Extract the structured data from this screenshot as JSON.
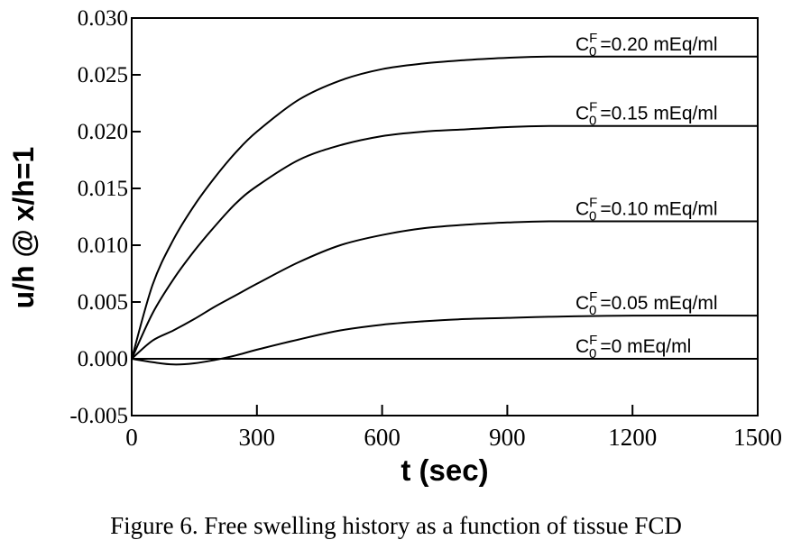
{
  "caption": "Figure 6.  Free swelling history as a function of tissue FCD",
  "chart_data": {
    "type": "line",
    "xlabel": "t (sec)",
    "ylabel": "u/h @ x/h=1",
    "xlim": [
      0,
      1500
    ],
    "ylim": [
      -0.005,
      0.03
    ],
    "xticks": [
      0,
      300,
      600,
      900,
      1200,
      1500
    ],
    "xtick_labels": [
      "0",
      "300",
      "600",
      "900",
      "1200",
      "1500"
    ],
    "yticks": [
      -0.005,
      0.0,
      0.005,
      0.01,
      0.015,
      0.02,
      0.025,
      0.03
    ],
    "ytick_labels": [
      "-0.005",
      "0.000",
      "0.005",
      "0.010",
      "0.015",
      "0.020",
      "0.025",
      "0.030"
    ],
    "grid": false,
    "line_color": "#000000",
    "x": [
      0,
      50,
      100,
      150,
      200,
      250,
      300,
      400,
      500,
      600,
      700,
      800,
      900,
      1000,
      1200,
      1500
    ],
    "series": [
      {
        "name": "C0F =0.20 mEq/ml",
        "label_prefix": "C",
        "label_sub": "0",
        "label_sup": "F",
        "label_value": "=0.20 mEq/ml",
        "values": [
          0.0,
          0.0065,
          0.0105,
          0.0135,
          0.016,
          0.0182,
          0.02,
          0.0228,
          0.0245,
          0.0255,
          0.026,
          0.0263,
          0.0265,
          0.0266,
          0.0266,
          0.0266
        ]
      },
      {
        "name": "C0F =0.15 mEq/ml",
        "label_prefix": "C",
        "label_sub": "0",
        "label_sup": "F",
        "label_value": "=0.15 mEq/ml",
        "values": [
          0.0,
          0.004,
          0.007,
          0.0095,
          0.0117,
          0.0137,
          0.0152,
          0.0175,
          0.0188,
          0.0196,
          0.02,
          0.0202,
          0.0204,
          0.0205,
          0.0205,
          0.0205
        ]
      },
      {
        "name": "C0F =0.10 mEq/ml",
        "label_prefix": "C",
        "label_sub": "0",
        "label_sup": "F",
        "label_value": "=0.10 mEq/ml",
        "values": [
          0.0,
          0.0016,
          0.0025,
          0.0035,
          0.0046,
          0.0056,
          0.0066,
          0.0085,
          0.01,
          0.0109,
          0.0115,
          0.0118,
          0.012,
          0.0121,
          0.0121,
          0.0121
        ]
      },
      {
        "name": "C0F =0.05 mEq/ml",
        "label_prefix": "C",
        "label_sub": "0",
        "label_sup": "F",
        "label_value": "=0.05 mEq/ml",
        "values": [
          0.0,
          -0.0003,
          -0.0005,
          -0.0004,
          -0.0001,
          0.0003,
          0.0008,
          0.0017,
          0.0025,
          0.003,
          0.0033,
          0.0035,
          0.0036,
          0.0037,
          0.0038,
          0.0038
        ]
      },
      {
        "name": "C0F =0 mEq/ml",
        "label_prefix": "C",
        "label_sub": "0",
        "label_sup": "F",
        "label_value": "=0 mEq/ml",
        "values": [
          0.0,
          0.0,
          0.0,
          0.0,
          0.0,
          0.0,
          0.0,
          0.0,
          0.0,
          0.0,
          0.0,
          0.0,
          0.0,
          0.0,
          0.0,
          0.0
        ]
      }
    ]
  }
}
